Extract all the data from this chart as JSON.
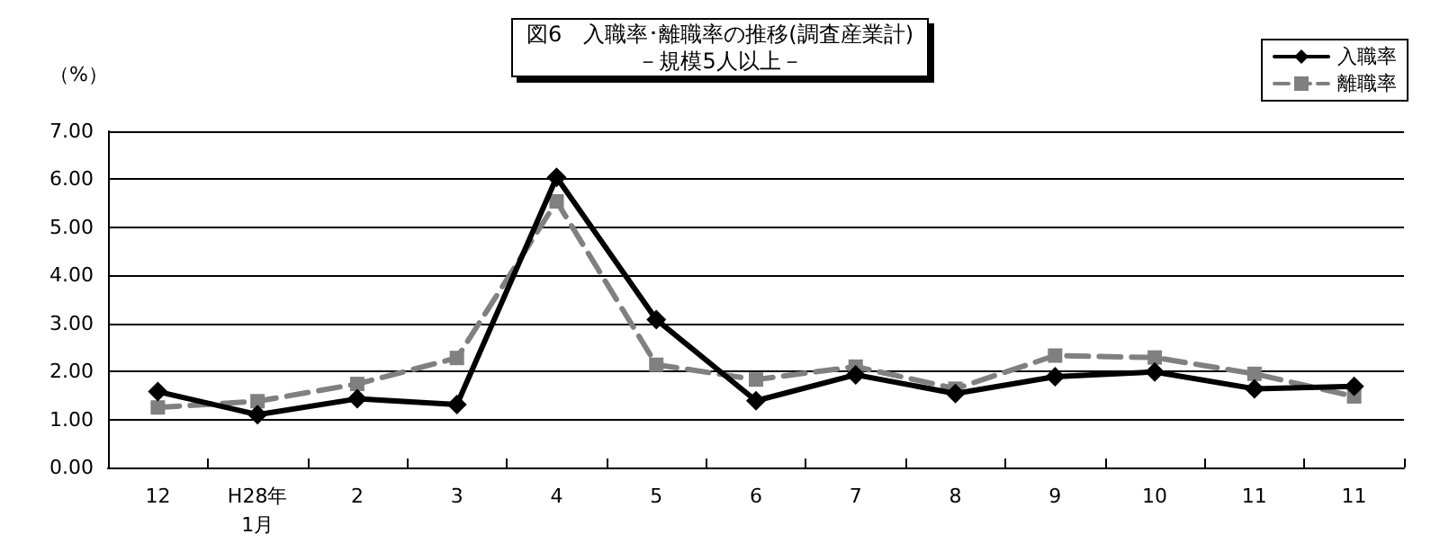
{
  "chart_data": {
    "type": "line",
    "title": "図6　入職率･離職率の推移(調査産業計)",
    "subtitle": "－規模5人以上－",
    "ylabel": "（%）",
    "categories": [
      "12",
      "H28年\n1月",
      "2",
      "3",
      "4",
      "5",
      "6",
      "7",
      "8",
      "9",
      "10",
      "11",
      "11"
    ],
    "series": [
      {
        "name": "入職率",
        "color": "#000000",
        "marker": "diamond",
        "line_style": "solid",
        "values": [
          1.58,
          1.1,
          1.43,
          1.31,
          6.04,
          3.08,
          1.39,
          1.93,
          1.54,
          1.89,
          1.99,
          1.64,
          1.69
        ]
      },
      {
        "name": "離職率",
        "color": "#808080",
        "marker": "square",
        "line_style": "dashed",
        "values": [
          1.25,
          1.38,
          1.74,
          2.28,
          5.54,
          2.14,
          1.83,
          2.1,
          1.64,
          2.33,
          2.29,
          1.95,
          1.48
        ]
      }
    ],
    "ylim": [
      0,
      7
    ],
    "yticks": [
      {
        "value": 0,
        "label": "0.00"
      },
      {
        "value": 1,
        "label": "1.00"
      },
      {
        "value": 2,
        "label": "2.00"
      },
      {
        "value": 3,
        "label": "3.00"
      },
      {
        "value": 4,
        "label": "4.00"
      },
      {
        "value": 5,
        "label": "5.00"
      },
      {
        "value": 6,
        "label": "6.00"
      },
      {
        "value": 7,
        "label": "7.00"
      }
    ],
    "grid": "y",
    "legend": "top right"
  }
}
